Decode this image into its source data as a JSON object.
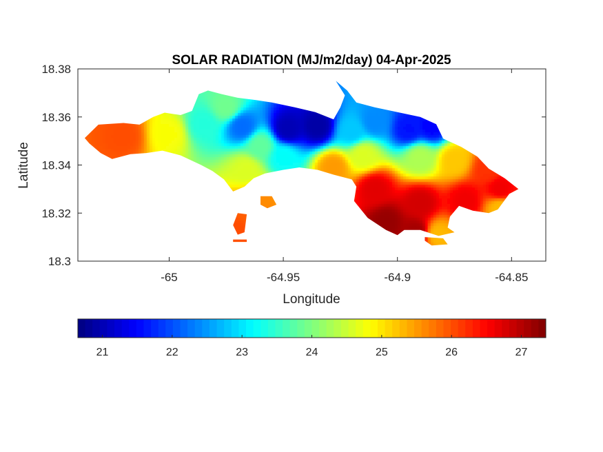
{
  "chart_data": {
    "type": "heatmap",
    "title": "SOLAR RADIATION (MJ/m2/day) 04-Apr-2025",
    "xlabel": "Longitude",
    "ylabel": "Latitude",
    "xlim": [
      -65.04,
      -64.835
    ],
    "ylim": [
      18.3,
      18.38
    ],
    "xticks": [
      -65,
      -64.95,
      -64.9,
      -64.85
    ],
    "xtick_labels": [
      "-65",
      "-64.95",
      "-64.9",
      "-64.85"
    ],
    "yticks": [
      18.3,
      18.32,
      18.34,
      18.36,
      18.38
    ],
    "ytick_labels": [
      "18.3",
      "18.32",
      "18.34",
      "18.36",
      "18.38"
    ],
    "colormap": "jet",
    "colorbar": {
      "orientation": "horizontal",
      "placement": "below",
      "clim": [
        20.65,
        27.35
      ],
      "ticks": [
        21,
        22,
        23,
        24,
        25,
        26,
        27
      ],
      "tick_labels": [
        "21",
        "22",
        "23",
        "24",
        "25",
        "26",
        "27"
      ]
    },
    "value_anchors": [
      {
        "lon": -65.02,
        "lat": 18.352,
        "value": 26.0
      },
      {
        "lon": -65.0,
        "lat": 18.353,
        "value": 24.8
      },
      {
        "lon": -64.985,
        "lat": 18.357,
        "value": 23.4
      },
      {
        "lon": -64.975,
        "lat": 18.364,
        "value": 23.9
      },
      {
        "lon": -64.968,
        "lat": 18.356,
        "value": 22.2
      },
      {
        "lon": -64.96,
        "lat": 18.348,
        "value": 23.8
      },
      {
        "lon": -64.966,
        "lat": 18.338,
        "value": 24.6
      },
      {
        "lon": -64.948,
        "lat": 18.355,
        "value": 21.0
      },
      {
        "lon": -64.935,
        "lat": 18.356,
        "value": 20.9
      },
      {
        "lon": -64.95,
        "lat": 18.343,
        "value": 23.2
      },
      {
        "lon": -64.92,
        "lat": 18.354,
        "value": 22.8
      },
      {
        "lon": -64.91,
        "lat": 18.358,
        "value": 22.4
      },
      {
        "lon": -64.895,
        "lat": 18.355,
        "value": 21.6
      },
      {
        "lon": -64.885,
        "lat": 18.356,
        "value": 21.5
      },
      {
        "lon": -64.915,
        "lat": 18.344,
        "value": 24.6
      },
      {
        "lon": -64.89,
        "lat": 18.343,
        "value": 24.3
      },
      {
        "lon": -64.875,
        "lat": 18.342,
        "value": 25.2
      },
      {
        "lon": -64.86,
        "lat": 18.338,
        "value": 26.2
      },
      {
        "lon": -64.855,
        "lat": 18.33,
        "value": 26.6
      },
      {
        "lon": -64.855,
        "lat": 18.322,
        "value": 25.3
      },
      {
        "lon": -64.91,
        "lat": 18.33,
        "value": 26.7
      },
      {
        "lon": -64.89,
        "lat": 18.324,
        "value": 26.8
      },
      {
        "lon": -64.87,
        "lat": 18.325,
        "value": 26.6
      },
      {
        "lon": -64.905,
        "lat": 18.316,
        "value": 27.2
      },
      {
        "lon": -64.892,
        "lat": 18.312,
        "value": 27.1
      },
      {
        "lon": -64.882,
        "lat": 18.311,
        "value": 25.3
      },
      {
        "lon": -64.96,
        "lat": 18.326,
        "value": 25.6
      },
      {
        "lon": -64.965,
        "lat": 18.32,
        "value": 25.9
      },
      {
        "lon": -64.97,
        "lat": 18.313,
        "value": 26.0
      },
      {
        "lon": -64.928,
        "lat": 18.339,
        "value": 25.5
      }
    ],
    "land_regions": [
      [
        [
          -65.037,
          18.3512
        ],
        [
          -65.031,
          18.3568
        ],
        [
          -65.02,
          18.3575
        ],
        [
          -65.013,
          18.3568
        ],
        [
          -65.007,
          18.36
        ],
        [
          -65.002,
          18.3618
        ],
        [
          -64.995,
          18.3608
        ],
        [
          -64.99,
          18.3625
        ],
        [
          -64.987,
          18.3695
        ],
        [
          -64.983,
          18.371
        ],
        [
          -64.977,
          18.3695
        ],
        [
          -64.97,
          18.368
        ],
        [
          -64.962,
          18.367
        ],
        [
          -64.955,
          18.366
        ],
        [
          -64.945,
          18.364
        ],
        [
          -64.936,
          18.362
        ],
        [
          -64.928,
          18.359
        ],
        [
          -64.925,
          18.364
        ],
        [
          -64.923,
          18.369
        ],
        [
          -64.927,
          18.375
        ],
        [
          -64.922,
          18.371
        ],
        [
          -64.918,
          18.366
        ],
        [
          -64.91,
          18.364
        ],
        [
          -64.9,
          18.362
        ],
        [
          -64.89,
          18.36
        ],
        [
          -64.883,
          18.357
        ],
        [
          -64.88,
          18.351
        ],
        [
          -64.872,
          18.3475
        ],
        [
          -64.865,
          18.3435
        ],
        [
          -64.86,
          18.3385
        ],
        [
          -64.853,
          18.3345
        ],
        [
          -64.847,
          18.33
        ],
        [
          -64.851,
          18.328
        ],
        [
          -64.856,
          18.3215
        ],
        [
          -64.86,
          18.32
        ],
        [
          -64.867,
          18.321
        ],
        [
          -64.873,
          18.323
        ],
        [
          -64.877,
          18.3185
        ],
        [
          -64.878,
          18.314
        ],
        [
          -64.875,
          18.312
        ],
        [
          -64.882,
          18.3105
        ],
        [
          -64.89,
          18.313
        ],
        [
          -64.897,
          18.313
        ],
        [
          -64.9,
          18.3108
        ],
        [
          -64.905,
          18.313
        ],
        [
          -64.913,
          18.318
        ],
        [
          -64.919,
          18.325
        ],
        [
          -64.918,
          18.331
        ],
        [
          -64.92,
          18.334
        ],
        [
          -64.928,
          18.336
        ],
        [
          -64.935,
          18.338
        ],
        [
          -64.943,
          18.339
        ],
        [
          -64.95,
          18.338
        ],
        [
          -64.958,
          18.3365
        ],
        [
          -64.963,
          18.3345
        ],
        [
          -64.967,
          18.331
        ],
        [
          -64.972,
          18.329
        ],
        [
          -64.976,
          18.334
        ],
        [
          -64.981,
          18.3375
        ],
        [
          -64.986,
          18.34
        ],
        [
          -64.995,
          18.344
        ],
        [
          -65.003,
          18.346
        ],
        [
          -65.01,
          18.345
        ],
        [
          -65.017,
          18.3445
        ],
        [
          -65.025,
          18.3425
        ],
        [
          -65.03,
          18.345
        ],
        [
          -65.035,
          18.349
        ]
      ],
      [
        [
          -64.96,
          18.327
        ],
        [
          -64.955,
          18.327
        ],
        [
          -64.953,
          18.3235
        ],
        [
          -64.957,
          18.322
        ],
        [
          -64.96,
          18.3235
        ]
      ],
      [
        [
          -64.97,
          18.32
        ],
        [
          -64.966,
          18.3195
        ],
        [
          -64.967,
          18.312
        ],
        [
          -64.97,
          18.311
        ],
        [
          -64.972,
          18.315
        ]
      ],
      [
        [
          -64.972,
          18.309
        ],
        [
          -64.966,
          18.309
        ],
        [
          -64.966,
          18.308
        ],
        [
          -64.972,
          18.308
        ]
      ],
      [
        [
          -64.888,
          18.31
        ],
        [
          -64.88,
          18.3095
        ],
        [
          -64.878,
          18.307
        ],
        [
          -64.885,
          18.3065
        ],
        [
          -64.888,
          18.3085
        ]
      ]
    ]
  }
}
